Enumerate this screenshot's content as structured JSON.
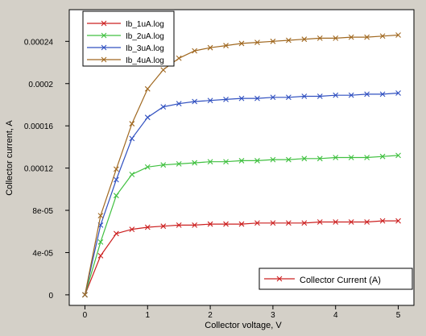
{
  "window": {
    "background": "#d4d0c8"
  },
  "chart_data": {
    "type": "line",
    "xlabel": "Collector voltage, V",
    "ylabel": "Collector current, A",
    "xlim": [
      -0.25,
      5.25
    ],
    "ylim": [
      -1e-05,
      0.00027
    ],
    "xticks": [
      0,
      1,
      2,
      3,
      4,
      5
    ],
    "yticks": [
      0,
      4e-05,
      8e-05,
      0.00012,
      0.00016,
      0.0002,
      0.00024
    ],
    "ytick_labels": [
      "0",
      "4e-05",
      "8e-05",
      "0.00012",
      "0.00016",
      "0.0002",
      "0.00024"
    ],
    "grid": false,
    "marker": "x",
    "x": [
      0,
      0.25,
      0.5,
      0.75,
      1,
      1.25,
      1.5,
      1.75,
      2,
      2.25,
      2.5,
      2.75,
      3,
      3.25,
      3.5,
      3.75,
      4,
      4.25,
      4.5,
      4.75,
      5
    ],
    "series": [
      {
        "name": "Ib_1uA.log",
        "color": "#cc2020",
        "values": [
          0,
          3.7e-05,
          5.8e-05,
          6.2e-05,
          6.4e-05,
          6.5e-05,
          6.6e-05,
          6.6e-05,
          6.7e-05,
          6.7e-05,
          6.7e-05,
          6.8e-05,
          6.8e-05,
          6.8e-05,
          6.8e-05,
          6.9e-05,
          6.9e-05,
          6.9e-05,
          6.9e-05,
          7e-05,
          7e-05
        ]
      },
      {
        "name": "Ib_2uA.log",
        "color": "#40c040",
        "values": [
          0,
          5e-05,
          9.4e-05,
          0.000114,
          0.000121,
          0.000123,
          0.000124,
          0.000125,
          0.000126,
          0.000126,
          0.000127,
          0.000127,
          0.000128,
          0.000128,
          0.000129,
          0.000129,
          0.00013,
          0.00013,
          0.00013,
          0.000131,
          0.000132
        ]
      },
      {
        "name": "Ib_3uA.log",
        "color": "#3050c0",
        "values": [
          0,
          6.6e-05,
          0.000109,
          0.000148,
          0.000168,
          0.000178,
          0.000181,
          0.000183,
          0.000184,
          0.000185,
          0.000186,
          0.000186,
          0.000187,
          0.000187,
          0.000188,
          0.000188,
          0.000189,
          0.000189,
          0.00019,
          0.00019,
          0.000191
        ]
      },
      {
        "name": "Ib_4uA.log",
        "color": "#a06820",
        "values": [
          0,
          7.5e-05,
          0.000119,
          0.000162,
          0.000195,
          0.000213,
          0.000224,
          0.000231,
          0.000234,
          0.000236,
          0.000238,
          0.000239,
          0.00024,
          0.000241,
          0.000242,
          0.000243,
          0.000243,
          0.000244,
          0.000244,
          0.000245,
          0.000246
        ]
      }
    ],
    "legend": {
      "placement": "top-left",
      "entries": [
        "Ib_1uA.log",
        "Ib_2uA.log",
        "Ib_3uA.log",
        "Ib_4uA.log"
      ]
    },
    "secondary_legend": {
      "placement": "bottom-right",
      "label": "Collector Current (A)",
      "color": "#cc2020"
    }
  }
}
